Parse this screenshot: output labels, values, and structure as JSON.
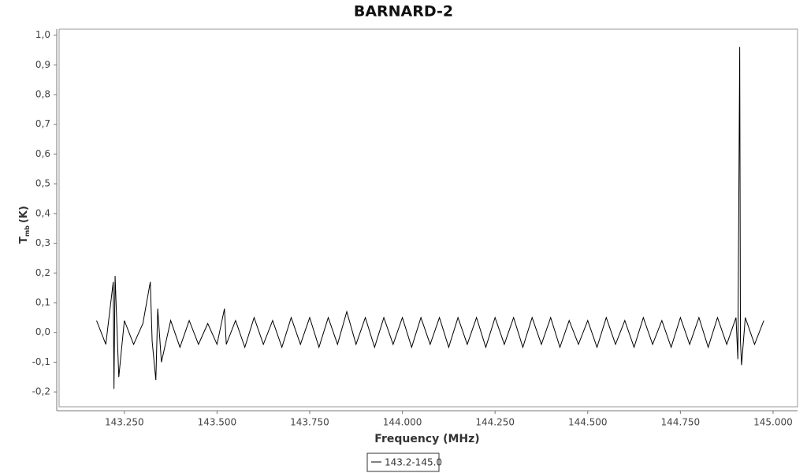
{
  "chart_data": {
    "type": "line",
    "title": "BARNARD-2",
    "x_label": "Frequency (MHz)",
    "y_label": "T",
    "y_label_sub": "mb",
    "y_label_unit": "(K)",
    "xlim": [
      143.074,
      145.066
    ],
    "ylim": [
      -0.25,
      1.02
    ],
    "xticks": [
      {
        "value": 143.25,
        "label": "143.250"
      },
      {
        "value": 143.5,
        "label": "143.500"
      },
      {
        "value": 143.75,
        "label": "143.750"
      },
      {
        "value": 144.0,
        "label": "144.000"
      },
      {
        "value": 144.25,
        "label": "144.250"
      },
      {
        "value": 144.5,
        "label": "144.500"
      },
      {
        "value": 144.75,
        "label": "144.750"
      },
      {
        "value": 145.0,
        "label": "145.000"
      }
    ],
    "yticks": [
      {
        "value": -0.2,
        "label": "-0,2"
      },
      {
        "value": -0.1,
        "label": "-0,1"
      },
      {
        "value": 0,
        "label": "0,0"
      },
      {
        "value": 0.1,
        "label": "0,1"
      },
      {
        "value": 0.2,
        "label": "0,2"
      },
      {
        "value": 0.3,
        "label": "0,3"
      },
      {
        "value": 0.4,
        "label": "0,4"
      },
      {
        "value": 0.5,
        "label": "0,5"
      },
      {
        "value": 0.6,
        "label": "0,6"
      },
      {
        "value": 0.7,
        "label": "0,7"
      },
      {
        "value": 0.8,
        "label": "0,8"
      },
      {
        "value": 0.9,
        "label": "0,9"
      },
      {
        "value": 1.0,
        "label": "1,0"
      }
    ],
    "x": [
      143.175,
      143.2,
      143.22,
      143.222,
      143.225,
      143.235,
      143.25,
      143.275,
      143.3,
      143.32,
      143.325,
      143.335,
      143.34,
      143.35,
      143.375,
      143.4,
      143.425,
      143.45,
      143.475,
      143.5,
      143.52,
      143.525,
      143.55,
      143.575,
      143.6,
      143.625,
      143.65,
      143.675,
      143.7,
      143.725,
      143.75,
      143.775,
      143.8,
      143.825,
      143.85,
      143.875,
      143.9,
      143.925,
      143.95,
      143.975,
      144.0,
      144.025,
      144.05,
      144.075,
      144.1,
      144.125,
      144.15,
      144.175,
      144.2,
      144.225,
      144.25,
      144.275,
      144.3,
      144.325,
      144.35,
      144.375,
      144.4,
      144.425,
      144.45,
      144.475,
      144.5,
      144.525,
      144.55,
      144.575,
      144.6,
      144.625,
      144.65,
      144.675,
      144.7,
      144.725,
      144.75,
      144.775,
      144.8,
      144.825,
      144.85,
      144.875,
      144.9,
      144.905,
      144.91,
      144.912,
      144.915,
      144.925,
      144.95,
      144.975
    ],
    "series": [
      {
        "name": "143.2-145.0",
        "color": "#000000",
        "values": [
          0.04,
          -0.04,
          0.17,
          -0.19,
          0.19,
          -0.15,
          0.04,
          -0.04,
          0.03,
          0.17,
          -0.03,
          -0.16,
          0.08,
          -0.1,
          0.04,
          -0.05,
          0.04,
          -0.04,
          0.03,
          -0.04,
          0.08,
          -0.04,
          0.04,
          -0.05,
          0.05,
          -0.04,
          0.04,
          -0.05,
          0.05,
          -0.04,
          0.05,
          -0.05,
          0.05,
          -0.04,
          0.07,
          -0.04,
          0.05,
          -0.05,
          0.05,
          -0.04,
          0.05,
          -0.05,
          0.05,
          -0.04,
          0.05,
          -0.05,
          0.05,
          -0.04,
          0.05,
          -0.05,
          0.05,
          -0.04,
          0.05,
          -0.05,
          0.05,
          -0.04,
          0.05,
          -0.05,
          0.04,
          -0.04,
          0.04,
          -0.05,
          0.05,
          -0.04,
          0.04,
          -0.05,
          0.05,
          -0.04,
          0.04,
          -0.05,
          0.05,
          -0.04,
          0.05,
          -0.05,
          0.05,
          -0.04,
          0.05,
          -0.09,
          0.96,
          -0.03,
          -0.11,
          0.05,
          -0.04,
          0.04
        ]
      }
    ]
  }
}
